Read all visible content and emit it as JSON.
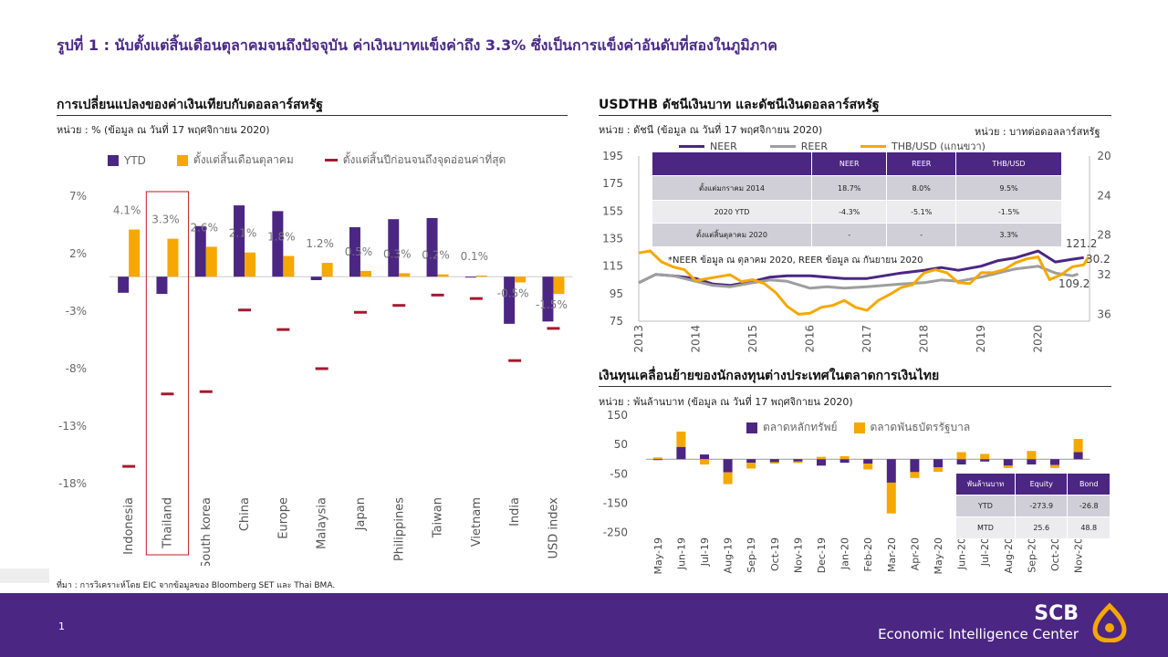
{
  "main_title": "รูปที่ 1 : นับตั้งแต่สิ้นเดือนตุลาคมจนถึงปัจจุบัน ค่าเงินบาทแข็งค่าถึง 3.3% ซึ่งเป็นการแข็งค่าอันดับที่สองในภูมิภาค",
  "left": {
    "title": "การเปลี่ยนแปลงของค่าเงินเทียบกับดอลลาร์สหรัฐ",
    "unit": "หน่วย : % (ข้อมูล ณ วันที่ 17 พฤศจิกายน 2020)",
    "legend": [
      "YTD",
      "ตั้งแต่สิ้นเดือนตุลาคม",
      "ตั้งแต่สิ้นปีก่อนจนถึงจุดอ่อนค่าที่สุด"
    ]
  },
  "right_top": {
    "title": "USDTHB ดัชนีเงินบาท และดัชนีเงินดอลลาร์สหรัฐ",
    "unit_left": "หน่วย : ดัชนี (ข้อมูล ณ วันที่ 17 พฤศจิกายน 2020)",
    "unit_right": "หน่วย : บาทต่อดอลลาร์สหรัฐ",
    "legend": [
      "NEER",
      "REER",
      "THB/USD (แกนขวา)"
    ],
    "note": "*NEER ข้อมูล ณ ตุลาคม 2020, REER ข้อมูล ณ กันยายน 2020",
    "table": {
      "header": [
        "",
        "NEER",
        "REER",
        "THB/USD"
      ],
      "rows": [
        [
          "ตั้งแต่มกราคม 2014",
          "18.7%",
          "8.0%",
          "9.5%"
        ],
        [
          "2020 YTD",
          "-4.3%",
          "-5.1%",
          "-1.5%"
        ],
        [
          "ตั้งแต่สิ้นตุลาคม 2020",
          "-",
          "-",
          "3.3%"
        ]
      ]
    },
    "end_labels": [
      "121.2",
      "30.2",
      "109.2"
    ]
  },
  "right_bottom": {
    "title": "เงินทุนเคลื่อนย้ายของนักลงทุนต่างประเทศในตลาดการเงินไทย",
    "unit": "หน่วย : พันล้านบาท (ข้อมูล ณ วันที่ 17 พฤศจิกายน 2020)",
    "legend": [
      "ตลาดหลักทรัพย์",
      "ตลาดพันธบัตรรัฐบาล"
    ],
    "table": {
      "header": [
        "พันล้านบาท",
        "Equity",
        "Bond"
      ],
      "rows": [
        [
          "YTD",
          "-273.9",
          "-26.8"
        ],
        [
          "MTD",
          "25.6",
          "48.8"
        ]
      ]
    }
  },
  "source": "ที่มา : การวิเคราะห์โดย EIC จากข้อมูลของ Bloomberg SET และ Thai BMA.",
  "page_number": "1",
  "brand": {
    "name": "SCB",
    "unit": "Economic Intelligence Center"
  },
  "colors": {
    "purple": "#4b2683",
    "orange": "#f5a800",
    "dark_red": "#a6192e",
    "grey": "#9e9e9e",
    "title": "#4b2a86"
  },
  "chart_data": [
    {
      "type": "bar",
      "title": "การเปลี่ยนแปลงของค่าเงินเทียบกับดอลลาร์สหรัฐ",
      "categories": [
        "Indonesia",
        "Thailand",
        "South korea",
        "China",
        "Europe",
        "Malaysia",
        "Japan",
        "Philippines",
        "Taiwan",
        "Vietnam",
        "India",
        "USD index"
      ],
      "series": [
        {
          "name": "YTD",
          "values": [
            -1.4,
            -1.5,
            4.4,
            6.2,
            5.7,
            -0.3,
            4.3,
            5.0,
            5.1,
            0.0,
            -4.1,
            -3.9
          ]
        },
        {
          "name": "ตั้งแต่สิ้นเดือนตุลาคม",
          "values": [
            4.1,
            3.3,
            2.6,
            2.1,
            1.8,
            1.2,
            0.5,
            0.3,
            0.2,
            0.1,
            -0.5,
            -1.5
          ]
        },
        {
          "name": "ตั้งแต่สิ้นปีก่อนจนถึงจุดอ่อนค่าที่สุด",
          "values": [
            -16.5,
            -10.2,
            -10.0,
            -2.9,
            -4.6,
            -8.0,
            -3.1,
            -2.5,
            -1.6,
            -1.9,
            -7.3,
            -4.5
          ]
        }
      ],
      "value_labels": [
        "4.1%",
        "3.3%",
        "2.6%",
        "2.1%",
        "1.8%",
        "1.2%",
        "0.5%",
        "0.3%",
        "0.2%",
        "0.1%",
        "-0.5%",
        "-1.5%"
      ],
      "y_ticks": [
        7,
        2,
        -3,
        -8,
        -13,
        -18
      ],
      "y_tick_labels": [
        "7%",
        "2%",
        "-3%",
        "-8%",
        "-13%",
        "-18%"
      ],
      "ylim": [
        -18,
        7
      ],
      "highlight": "Thailand"
    },
    {
      "type": "line",
      "title": "USDTHB ดัชนีเงินบาท และดัชนีเงินดอลลาร์สหรัฐ",
      "x_ticks": [
        "2013",
        "2014",
        "2015",
        "2016",
        "2017",
        "2018",
        "2019",
        "2020"
      ],
      "x_range": [
        2013.0,
        2020.9
      ],
      "y_left_ticks": [
        195,
        175,
        155,
        135,
        115,
        95,
        75
      ],
      "y_left_range": [
        75,
        195
      ],
      "y_right_ticks": [
        20,
        24,
        28,
        32,
        36
      ],
      "y_right_range": [
        20,
        36.7
      ],
      "y_right_inverted": true,
      "series": [
        {
          "name": "NEER",
          "axis": "left",
          "x": [
            2013.0,
            2013.3,
            2013.6,
            2014.0,
            2014.3,
            2014.6,
            2015.0,
            2015.3,
            2015.6,
            2016.0,
            2016.3,
            2016.6,
            2017.0,
            2017.3,
            2017.6,
            2018.0,
            2018.3,
            2018.6,
            2019.0,
            2019.3,
            2019.6,
            2020.0,
            2020.3,
            2020.6,
            2020.8
          ],
          "y": [
            103,
            109,
            108,
            106,
            102,
            101,
            104,
            107,
            108,
            108,
            107,
            106,
            106,
            108,
            110,
            112,
            114,
            112,
            115,
            119,
            121,
            126,
            118,
            120,
            121.2
          ]
        },
        {
          "name": "REER",
          "axis": "left",
          "x": [
            2013.0,
            2013.3,
            2013.6,
            2014.0,
            2014.3,
            2014.6,
            2015.0,
            2015.3,
            2015.6,
            2016.0,
            2016.3,
            2016.6,
            2017.0,
            2017.3,
            2017.6,
            2018.0,
            2018.3,
            2018.6,
            2019.0,
            2019.3,
            2019.6,
            2020.0,
            2020.3,
            2020.6,
            2020.7
          ],
          "y": [
            103,
            109,
            108,
            104,
            101,
            100,
            103,
            105,
            104,
            99,
            100,
            99,
            100,
            101,
            102,
            103,
            105,
            104,
            107,
            110,
            113,
            115,
            110,
            108,
            109.2
          ]
        },
        {
          "name": "THB/USD (แกนขวา)",
          "axis": "right",
          "x": [
            2013.0,
            2013.2,
            2013.4,
            2013.6,
            2013.8,
            2014.0,
            2014.2,
            2014.4,
            2014.6,
            2014.8,
            2015.0,
            2015.2,
            2015.4,
            2015.6,
            2015.8,
            2016.0,
            2016.2,
            2016.4,
            2016.6,
            2016.8,
            2017.0,
            2017.2,
            2017.4,
            2017.6,
            2017.8,
            2018.0,
            2018.2,
            2018.4,
            2018.6,
            2018.8,
            2019.0,
            2019.2,
            2019.4,
            2019.6,
            2019.8,
            2020.0,
            2020.2,
            2020.4,
            2020.6,
            2020.8,
            2020.88
          ],
          "y": [
            29.8,
            29.6,
            30.7,
            31.2,
            31.5,
            32.6,
            32.4,
            32.2,
            32.0,
            32.7,
            32.5,
            32.9,
            33.8,
            35.2,
            36.0,
            35.9,
            35.3,
            35.1,
            34.6,
            35.3,
            35.6,
            34.6,
            34.0,
            33.3,
            33.0,
            31.8,
            31.5,
            31.8,
            32.8,
            32.9,
            31.8,
            31.8,
            31.5,
            30.8,
            30.4,
            30.2,
            32.5,
            32.0,
            31.2,
            31.0,
            30.2
          ]
        }
      ]
    },
    {
      "type": "bar",
      "title": "เงินทุนเคลื่อนย้ายของนักลงทุนต่างประเทศในตลาดการเงินไทย",
      "categories": [
        "May-19",
        "Jun-19",
        "Jul-19",
        "Aug-19",
        "Sep-19",
        "Oct-19",
        "Nov-19",
        "Dec-19",
        "Jan-20",
        "Feb-20",
        "Mar-20",
        "Apr-20",
        "May-20",
        "Jun-20",
        "Jul-20",
        "Aug-20",
        "Sep-20",
        "Oct-20",
        "Nov-20"
      ],
      "series": [
        {
          "name": "ตลาดหลักทรัพย์",
          "values": [
            -2,
            42,
            16,
            -45,
            -12,
            -10,
            -8,
            -22,
            -12,
            -15,
            -80,
            -44,
            -28,
            -18,
            -8,
            -22,
            -18,
            -20,
            24
          ]
        },
        {
          "name": "ตลาดพันธบัตรรัฐบาล",
          "values": [
            6,
            52,
            -18,
            -40,
            -20,
            -5,
            -5,
            8,
            10,
            -20,
            -105,
            -20,
            -15,
            24,
            18,
            -8,
            28,
            -10,
            45
          ]
        }
      ],
      "stacked": true,
      "y_ticks": [
        150,
        50,
        -50,
        -150,
        -250
      ],
      "ylim": [
        -270,
        150
      ]
    }
  ]
}
